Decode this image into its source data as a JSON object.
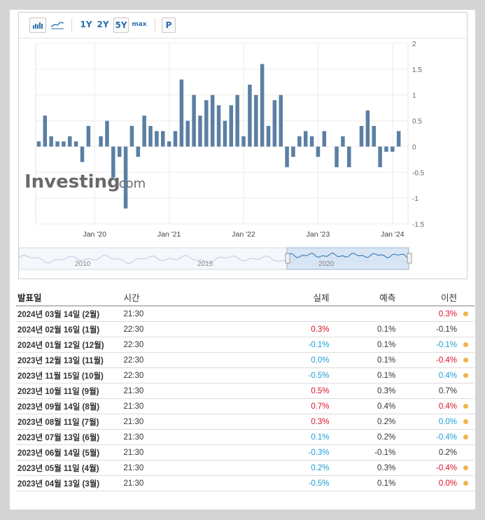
{
  "toolbar": {
    "periods": [
      "1Y",
      "2Y",
      "5Y",
      "max"
    ],
    "selected_period": "5Y",
    "p_label": "P"
  },
  "colors": {
    "bar": "#5b7fa3",
    "positive": "#e0102a",
    "negative": "#1a9fd6",
    "dot": "#f0b64a"
  },
  "chart_data": {
    "type": "bar",
    "title": "",
    "xlabel": "",
    "ylabel": "",
    "ylim": [
      -1.5,
      2
    ],
    "yticks": [
      2,
      1.5,
      1,
      0.5,
      0,
      -0.5,
      -1,
      -1.5
    ],
    "ytick_labels": [
      "2",
      "1.5",
      "1",
      "0.5",
      "0",
      "-0.5",
      "-1",
      "-1.5"
    ],
    "x_tick_labels": [
      "Jan '20",
      "Jan '21",
      "Jan '22",
      "Jan '23",
      "Jan '24"
    ],
    "x_tick_index": [
      9,
      21,
      33,
      45,
      57
    ],
    "watermark": {
      "main": "Investing",
      "suffix": ".com"
    },
    "navigator_labels": [
      "2010",
      "2015",
      "2020"
    ],
    "categories": [
      "2019-03",
      "2019-04",
      "2019-05",
      "2019-06",
      "2019-07",
      "2019-08",
      "2019-09",
      "2019-10",
      "2019-11",
      "2019-12",
      "2020-01",
      "2020-02",
      "2020-03",
      "2020-04",
      "2020-05",
      "2020-06",
      "2020-07",
      "2020-08",
      "2020-09",
      "2020-10",
      "2020-11",
      "2020-12",
      "2021-01",
      "2021-02",
      "2021-03",
      "2021-04",
      "2021-05",
      "2021-06",
      "2021-07",
      "2021-08",
      "2021-09",
      "2021-10",
      "2021-11",
      "2021-12",
      "2022-01",
      "2022-02",
      "2022-03",
      "2022-04",
      "2022-05",
      "2022-06",
      "2022-07",
      "2022-08",
      "2022-09",
      "2022-10",
      "2022-11",
      "2022-12",
      "2023-01",
      "2023-02",
      "2023-03",
      "2023-04",
      "2023-05",
      "2023-06",
      "2023-07",
      "2023-08",
      "2023-09",
      "2023-10",
      "2023-11",
      "2023-12",
      "2024-01",
      "2024-02"
    ],
    "values": [
      0.1,
      0.6,
      0.2,
      0.1,
      0.1,
      0.2,
      0.1,
      -0.3,
      0.4,
      0.0,
      0.2,
      0.5,
      -0.6,
      -0.2,
      -1.2,
      0.4,
      -0.2,
      0.6,
      0.4,
      0.3,
      0.3,
      0.1,
      0.3,
      1.3,
      0.5,
      1.0,
      0.6,
      0.9,
      1.0,
      0.8,
      0.5,
      0.8,
      1.0,
      0.2,
      1.2,
      1.0,
      1.6,
      0.4,
      0.9,
      1.0,
      -0.4,
      -0.2,
      0.2,
      0.3,
      0.2,
      -0.2,
      0.3,
      0.0,
      -0.4,
      0.2,
      -0.4,
      0.0,
      0.4,
      0.7,
      0.4,
      -0.4,
      -0.1,
      -0.1,
      0.3,
      0.0
    ]
  },
  "history": {
    "headers": {
      "date": "발표일",
      "time": "시간",
      "actual": "실제",
      "forecast": "예측",
      "previous": "이전"
    },
    "rows": [
      {
        "date": "2024년 03월 14일 (2월)",
        "time": "21:30",
        "actual": "",
        "actual_sign": "",
        "forecast": "",
        "previous": "0.3%",
        "previous_sign": "pos",
        "dot": true
      },
      {
        "date": "2024년 02월 16일 (1월)",
        "time": "22:30",
        "actual": "0.3%",
        "actual_sign": "pos",
        "forecast": "0.1%",
        "previous": "-0.1%",
        "previous_sign": "",
        "dot": false
      },
      {
        "date": "2024년 01월 12일 (12월)",
        "time": "22:30",
        "actual": "-0.1%",
        "actual_sign": "neg",
        "forecast": "0.1%",
        "previous": "-0.1%",
        "previous_sign": "neg",
        "dot": true
      },
      {
        "date": "2023년 12월 13일 (11월)",
        "time": "22:30",
        "actual": "0.0%",
        "actual_sign": "neg",
        "forecast": "0.1%",
        "previous": "-0.4%",
        "previous_sign": "pos",
        "dot": true
      },
      {
        "date": "2023년 11월 15일 (10월)",
        "time": "22:30",
        "actual": "-0.5%",
        "actual_sign": "neg",
        "forecast": "0.1%",
        "previous": "0.4%",
        "previous_sign": "neg",
        "dot": true
      },
      {
        "date": "2023년 10월 11일 (9월)",
        "time": "21:30",
        "actual": "0.5%",
        "actual_sign": "pos",
        "forecast": "0.3%",
        "previous": "0.7%",
        "previous_sign": "",
        "dot": false
      },
      {
        "date": "2023년 09월 14일 (8월)",
        "time": "21:30",
        "actual": "0.7%",
        "actual_sign": "pos",
        "forecast": "0.4%",
        "previous": "0.4%",
        "previous_sign": "pos",
        "dot": true
      },
      {
        "date": "2023년 08월 11일 (7월)",
        "time": "21:30",
        "actual": "0.3%",
        "actual_sign": "pos",
        "forecast": "0.2%",
        "previous": "0.0%",
        "previous_sign": "neg",
        "dot": true
      },
      {
        "date": "2023년 07월 13일 (6월)",
        "time": "21:30",
        "actual": "0.1%",
        "actual_sign": "neg",
        "forecast": "0.2%",
        "previous": "-0.4%",
        "previous_sign": "neg",
        "dot": true
      },
      {
        "date": "2023년 06월 14일 (5월)",
        "time": "21:30",
        "actual": "-0.3%",
        "actual_sign": "neg",
        "forecast": "-0.1%",
        "previous": "0.2%",
        "previous_sign": "",
        "dot": false
      },
      {
        "date": "2023년 05월 11일 (4월)",
        "time": "21:30",
        "actual": "0.2%",
        "actual_sign": "neg",
        "forecast": "0.3%",
        "previous": "-0.4%",
        "previous_sign": "pos",
        "dot": true
      },
      {
        "date": "2023년 04월 13일 (3월)",
        "time": "21:30",
        "actual": "-0.5%",
        "actual_sign": "neg",
        "forecast": "0.1%",
        "previous": "0.0%",
        "previous_sign": "pos",
        "dot": true
      }
    ]
  }
}
